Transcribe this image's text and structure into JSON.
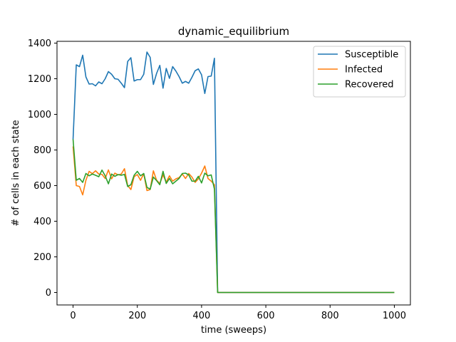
{
  "chart_data": {
    "type": "line",
    "title": "dynamic_equilibrium",
    "xlabel": "time (sweeps)",
    "ylabel": "# of cells in each state",
    "xlim": [
      -50,
      1050
    ],
    "ylim": [
      -70,
      1410
    ],
    "xticks": [
      0,
      200,
      400,
      600,
      800,
      1000
    ],
    "yticks": [
      0,
      200,
      400,
      600,
      800,
      1000,
      1200,
      1400
    ],
    "grid": false,
    "legend_position": "top-right",
    "x": [
      0,
      10,
      20,
      30,
      40,
      50,
      60,
      70,
      80,
      90,
      100,
      110,
      120,
      130,
      140,
      150,
      160,
      170,
      180,
      190,
      200,
      210,
      220,
      230,
      240,
      250,
      260,
      270,
      280,
      290,
      300,
      310,
      320,
      330,
      340,
      350,
      360,
      370,
      380,
      390,
      400,
      410,
      420,
      430,
      440,
      450,
      460,
      1000
    ],
    "series": [
      {
        "name": "Susceptible",
        "color": "#1f77b4",
        "values": [
          860,
          1278,
          1268,
          1332,
          1210,
          1170,
          1172,
          1160,
          1182,
          1172,
          1200,
          1240,
          1225,
          1200,
          1197,
          1175,
          1150,
          1297,
          1318,
          1187,
          1195,
          1195,
          1225,
          1350,
          1320,
          1168,
          1230,
          1275,
          1147,
          1258,
          1202,
          1268,
          1243,
          1212,
          1175,
          1185,
          1175,
          1208,
          1245,
          1255,
          1222,
          1117,
          1212,
          1215,
          1315,
          0,
          0,
          0
        ]
      },
      {
        "name": "Infected",
        "color": "#ff7f0e",
        "values": [
          820,
          600,
          595,
          548,
          630,
          680,
          667,
          683,
          665,
          663,
          640,
          688,
          638,
          670,
          660,
          665,
          695,
          600,
          578,
          650,
          662,
          630,
          667,
          572,
          578,
          683,
          630,
          612,
          660,
          620,
          655,
          625,
          638,
          645,
          665,
          640,
          668,
          648,
          618,
          638,
          670,
          710,
          640,
          625,
          605,
          0,
          0,
          0
        ]
      },
      {
        "name": "Recovered",
        "color": "#2ca02c",
        "values": [
          860,
          630,
          640,
          618,
          668,
          655,
          665,
          658,
          650,
          687,
          655,
          610,
          665,
          652,
          662,
          658,
          663,
          595,
          605,
          658,
          680,
          655,
          668,
          590,
          580,
          648,
          628,
          605,
          680,
          612,
          640,
          610,
          625,
          640,
          668,
          670,
          660,
          625,
          625,
          652,
          615,
          670,
          655,
          660,
          580,
          0,
          0,
          0
        ]
      }
    ]
  }
}
